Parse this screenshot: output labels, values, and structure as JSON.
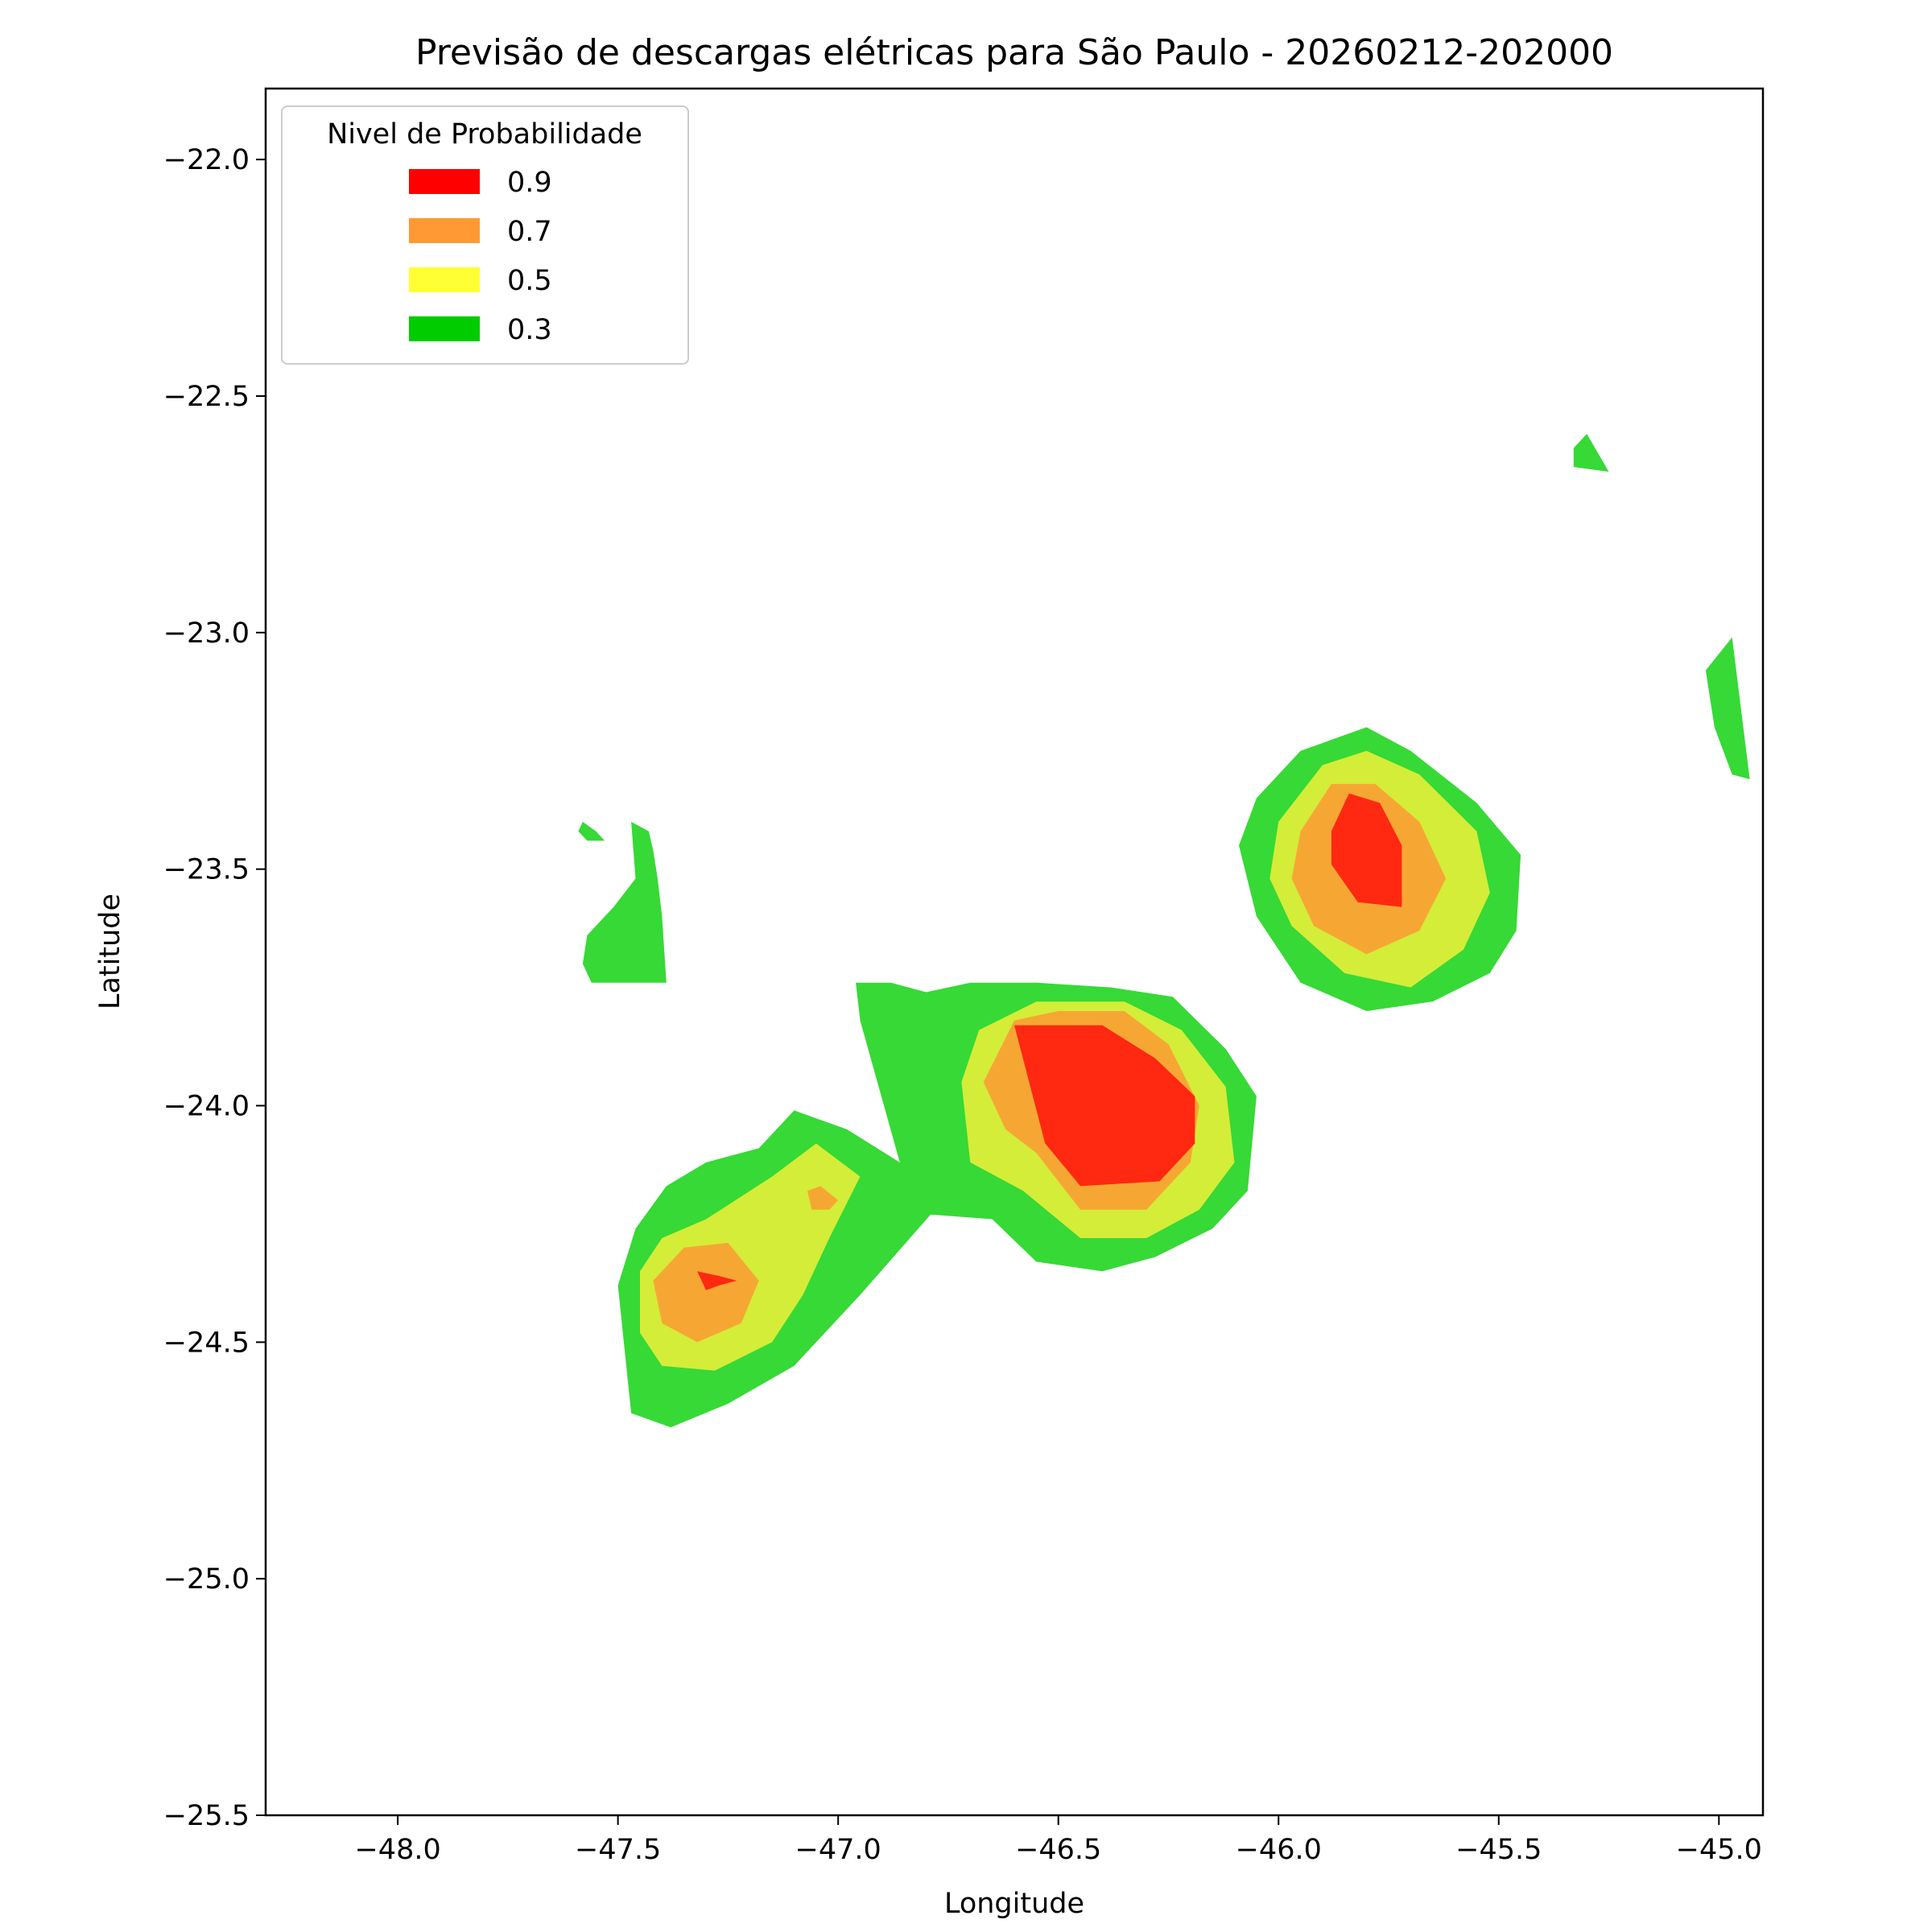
{
  "chart_data": {
    "type": "contour",
    "title": "Previsão de descargas elétricas para São Paulo - 20260212-202000",
    "xlabel": "Longitude",
    "ylabel": "Latitude",
    "xlim": [
      -48.3,
      -44.9
    ],
    "ylim": [
      -25.5,
      -21.85
    ],
    "xticks": [
      -48.0,
      -47.5,
      -47.0,
      -46.5,
      -46.0,
      -45.5,
      -45.0
    ],
    "yticks": [
      -22.0,
      -22.5,
      -23.0,
      -23.5,
      -24.0,
      -24.5,
      -25.0,
      -25.5
    ],
    "xtick_labels": [
      "−48.0",
      "−47.5",
      "−47.0",
      "−46.5",
      "−46.0",
      "−45.5",
      "−45.0"
    ],
    "ytick_labels": [
      "−22.0",
      "−22.5",
      "−23.0",
      "−23.5",
      "−24.0",
      "−24.5",
      "−25.0",
      "−25.5"
    ],
    "legend": {
      "title": "Nivel de Probabilidade",
      "placement": "top-left",
      "entries": [
        {
          "label": "0.9",
          "color": "#ff0000"
        },
        {
          "label": "0.7",
          "color": "#ff9933"
        },
        {
          "label": "0.5",
          "color": "#ffff33"
        },
        {
          "label": "0.3",
          "color": "#00cc00"
        }
      ]
    },
    "fill_colors": {
      "0.3": "#36d936",
      "0.5": "#d4ed38",
      "0.7": "#f6a733",
      "0.9": "#ff2810"
    },
    "regions": [
      {
        "level": 0.3,
        "points": [
          [
            -47.47,
            -23.4
          ],
          [
            -47.43,
            -23.42
          ],
          [
            -47.42,
            -23.46
          ],
          [
            -47.41,
            -23.52
          ],
          [
            -47.4,
            -23.6
          ],
          [
            -47.39,
            -23.74
          ],
          [
            -47.56,
            -23.74
          ],
          [
            -47.58,
            -23.7
          ],
          [
            -47.57,
            -23.64
          ],
          [
            -47.51,
            -23.58
          ],
          [
            -47.46,
            -23.52
          ]
        ]
      },
      {
        "level": 0.3,
        "points": [
          [
            -47.58,
            -23.4
          ],
          [
            -47.55,
            -23.42
          ],
          [
            -47.53,
            -23.44
          ],
          [
            -47.57,
            -23.44
          ],
          [
            -47.59,
            -23.42
          ]
        ]
      },
      {
        "level": 0.3,
        "points": [
          [
            -45.3,
            -22.58
          ],
          [
            -45.25,
            -22.66
          ],
          [
            -45.33,
            -22.65
          ],
          [
            -45.33,
            -22.61
          ]
        ]
      },
      {
        "level": 0.3,
        "points": [
          [
            -44.97,
            -23.01
          ],
          [
            -44.93,
            -23.31
          ],
          [
            -44.97,
            -23.3
          ],
          [
            -45.01,
            -23.2
          ],
          [
            -45.03,
            -23.08
          ]
        ]
      },
      {
        "level": 0.3,
        "points": [
          [
            -47.5,
            -24.38
          ],
          [
            -47.46,
            -24.26
          ],
          [
            -47.39,
            -24.17
          ],
          [
            -47.3,
            -24.12
          ],
          [
            -47.18,
            -24.09
          ],
          [
            -47.1,
            -24.01
          ],
          [
            -46.98,
            -24.05
          ],
          [
            -46.86,
            -24.12
          ],
          [
            -46.95,
            -23.82
          ],
          [
            -46.96,
            -23.74
          ],
          [
            -46.88,
            -23.74
          ],
          [
            -46.8,
            -23.76
          ],
          [
            -46.7,
            -23.74
          ],
          [
            -46.55,
            -23.74
          ],
          [
            -46.38,
            -23.75
          ],
          [
            -46.24,
            -23.77
          ],
          [
            -46.12,
            -23.88
          ],
          [
            -46.05,
            -23.98
          ],
          [
            -46.07,
            -24.18
          ],
          [
            -46.15,
            -24.26
          ],
          [
            -46.28,
            -24.32
          ],
          [
            -46.4,
            -24.35
          ],
          [
            -46.55,
            -24.33
          ],
          [
            -46.65,
            -24.24
          ],
          [
            -46.79,
            -24.23
          ],
          [
            -46.95,
            -24.4
          ],
          [
            -47.1,
            -24.55
          ],
          [
            -47.25,
            -24.63
          ],
          [
            -47.38,
            -24.68
          ],
          [
            -47.47,
            -24.65
          ]
        ]
      },
      {
        "level": 0.3,
        "points": [
          [
            -46.05,
            -23.35
          ],
          [
            -45.95,
            -23.25
          ],
          [
            -45.8,
            -23.2
          ],
          [
            -45.7,
            -23.25
          ],
          [
            -45.55,
            -23.36
          ],
          [
            -45.45,
            -23.47
          ],
          [
            -45.46,
            -23.63
          ],
          [
            -45.52,
            -23.72
          ],
          [
            -45.65,
            -23.78
          ],
          [
            -45.8,
            -23.8
          ],
          [
            -45.95,
            -23.74
          ],
          [
            -46.05,
            -23.6
          ],
          [
            -46.09,
            -23.45
          ]
        ]
      },
      {
        "level": 0.5,
        "points": [
          [
            -47.45,
            -24.35
          ],
          [
            -47.4,
            -24.28
          ],
          [
            -47.3,
            -24.24
          ],
          [
            -47.15,
            -24.15
          ],
          [
            -47.05,
            -24.08
          ],
          [
            -46.95,
            -24.15
          ],
          [
            -47.02,
            -24.28
          ],
          [
            -47.08,
            -24.4
          ],
          [
            -47.15,
            -24.5
          ],
          [
            -47.28,
            -24.56
          ],
          [
            -47.4,
            -24.55
          ],
          [
            -47.45,
            -24.48
          ]
        ]
      },
      {
        "level": 0.5,
        "points": [
          [
            -46.72,
            -23.95
          ],
          [
            -46.68,
            -23.84
          ],
          [
            -46.55,
            -23.78
          ],
          [
            -46.35,
            -23.78
          ],
          [
            -46.22,
            -23.84
          ],
          [
            -46.12,
            -23.96
          ],
          [
            -46.1,
            -24.12
          ],
          [
            -46.18,
            -24.22
          ],
          [
            -46.3,
            -24.28
          ],
          [
            -46.45,
            -24.28
          ],
          [
            -46.58,
            -24.18
          ],
          [
            -46.7,
            -24.12
          ]
        ]
      },
      {
        "level": 0.5,
        "points": [
          [
            -46.0,
            -23.4
          ],
          [
            -45.9,
            -23.28
          ],
          [
            -45.8,
            -23.25
          ],
          [
            -45.68,
            -23.3
          ],
          [
            -45.55,
            -23.42
          ],
          [
            -45.52,
            -23.55
          ],
          [
            -45.58,
            -23.67
          ],
          [
            -45.7,
            -23.75
          ],
          [
            -45.85,
            -23.72
          ],
          [
            -45.97,
            -23.62
          ],
          [
            -46.02,
            -23.52
          ]
        ]
      },
      {
        "level": 0.7,
        "points": [
          [
            -47.42,
            -24.37
          ],
          [
            -47.35,
            -24.3
          ],
          [
            -47.25,
            -24.29
          ],
          [
            -47.18,
            -24.37
          ],
          [
            -47.22,
            -24.46
          ],
          [
            -47.32,
            -24.5
          ],
          [
            -47.4,
            -24.46
          ]
        ]
      },
      {
        "level": 0.7,
        "points": [
          [
            -47.07,
            -24.18
          ],
          [
            -47.04,
            -24.17
          ],
          [
            -47.0,
            -24.2
          ],
          [
            -47.02,
            -24.22
          ],
          [
            -47.06,
            -24.22
          ]
        ]
      },
      {
        "level": 0.7,
        "points": [
          [
            -46.6,
            -23.82
          ],
          [
            -46.5,
            -23.8
          ],
          [
            -46.35,
            -23.8
          ],
          [
            -46.25,
            -23.87
          ],
          [
            -46.18,
            -24.0
          ],
          [
            -46.2,
            -24.12
          ],
          [
            -46.3,
            -24.22
          ],
          [
            -46.45,
            -24.22
          ],
          [
            -46.55,
            -24.1
          ],
          [
            -46.62,
            -24.05
          ],
          [
            -46.67,
            -23.95
          ]
        ]
      },
      {
        "level": 0.7,
        "points": [
          [
            -45.95,
            -23.42
          ],
          [
            -45.88,
            -23.32
          ],
          [
            -45.78,
            -23.32
          ],
          [
            -45.68,
            -23.4
          ],
          [
            -45.62,
            -23.52
          ],
          [
            -45.68,
            -23.63
          ],
          [
            -45.8,
            -23.68
          ],
          [
            -45.92,
            -23.62
          ],
          [
            -45.97,
            -23.52
          ]
        ]
      },
      {
        "level": 0.9,
        "points": [
          [
            -47.32,
            -24.35
          ],
          [
            -47.27,
            -24.36
          ],
          [
            -47.23,
            -24.37
          ],
          [
            -47.27,
            -24.38
          ],
          [
            -47.3,
            -24.39
          ]
        ]
      },
      {
        "level": 0.9,
        "points": [
          [
            -46.6,
            -23.83
          ],
          [
            -46.4,
            -23.83
          ],
          [
            -46.28,
            -23.9
          ],
          [
            -46.19,
            -23.98
          ],
          [
            -46.19,
            -24.08
          ],
          [
            -46.27,
            -24.16
          ],
          [
            -46.45,
            -24.17
          ],
          [
            -46.53,
            -24.08
          ]
        ]
      },
      {
        "level": 0.9,
        "points": [
          [
            -45.88,
            -23.42
          ],
          [
            -45.84,
            -23.34
          ],
          [
            -45.77,
            -23.36
          ],
          [
            -45.72,
            -23.45
          ],
          [
            -45.72,
            -23.58
          ],
          [
            -45.82,
            -23.57
          ],
          [
            -45.88,
            -23.49
          ]
        ]
      }
    ]
  }
}
